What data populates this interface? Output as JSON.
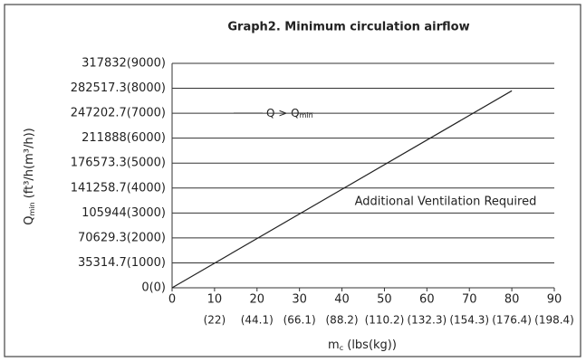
{
  "chart_data": {
    "type": "line",
    "title": "Graph2. Minimum circulation airflow",
    "xlabel": {
      "main": "m",
      "sub": "c",
      "rest": " (lbs(kg))"
    },
    "ylabel": {
      "main": "Q",
      "sub": "min",
      "rest": " (ft³/h(m³/h))"
    },
    "x": [
      0,
      80
    ],
    "series": [
      {
        "name": "Qmin",
        "color": "#222222",
        "values": [
          0,
          7900
        ]
      }
    ],
    "xlim": [
      0,
      90
    ],
    "xticks": [
      0,
      10,
      20,
      30,
      40,
      50,
      60,
      70,
      80,
      90
    ],
    "xtick_sublabels": [
      null,
      "(22)",
      "(44.1)",
      "(66.1)",
      "(88.2)",
      "(110.2)",
      "(132.3)",
      "(154.3)",
      "(176.4)",
      "(198.4)"
    ],
    "ylim": [
      0,
      9000
    ],
    "yticks": [
      {
        "value": 0,
        "label": "0(0)"
      },
      {
        "value": 1000,
        "label": "35314.7(1000)"
      },
      {
        "value": 2000,
        "label": "70629.3(2000)"
      },
      {
        "value": 3000,
        "label": "105944(3000)"
      },
      {
        "value": 4000,
        "label": "141258.7(4000)"
      },
      {
        "value": 5000,
        "label": "176573.3(5000)"
      },
      {
        "value": 6000,
        "label": "211888(6000)"
      },
      {
        "value": 7000,
        "label": "247202.7(7000)"
      },
      {
        "value": 8000,
        "label": "282517.3(8000)"
      },
      {
        "value": 9000,
        "label": "317832(9000)"
      }
    ],
    "grid": true,
    "annotations": [
      {
        "main": "Q > Q",
        "sub": "min"
      },
      {
        "text": "Additional Ventilation Required"
      }
    ]
  }
}
